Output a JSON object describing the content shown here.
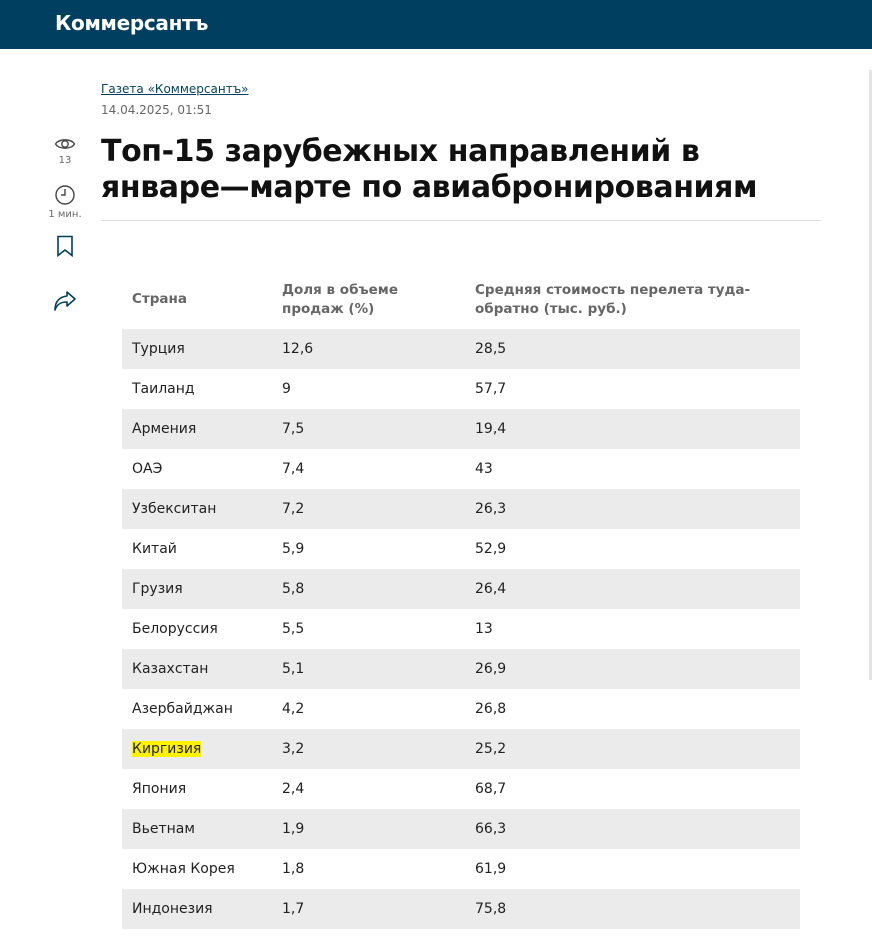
{
  "site": {
    "logo": "Коммерсантъ"
  },
  "article": {
    "source": "Газета «Коммерсантъ»",
    "date": "14.04.2025, 01:51",
    "title": "Топ-15 зарубежных направлений в январе—марте по авиабронированиям"
  },
  "rail": {
    "views": "13",
    "read_time": "1 мин."
  },
  "table": {
    "headers": [
      "Страна",
      "Доля в объеме продаж (%)",
      "Средняя стоимость перелета туда-обратно (тыс. руб.)"
    ],
    "rows": [
      [
        "Турция",
        "12,6",
        "28,5"
      ],
      [
        "Таиланд",
        "9",
        "57,7"
      ],
      [
        "Армения",
        "7,5",
        "19,4"
      ],
      [
        "ОАЭ",
        "7,4",
        "43"
      ],
      [
        "Узбекситан",
        "7,2",
        "26,3"
      ],
      [
        "Китай",
        "5,9",
        "52,9"
      ],
      [
        "Грузия",
        "5,8",
        "26,4"
      ],
      [
        "Белоруссия",
        "5,5",
        "13"
      ],
      [
        "Казахстан",
        "5,1",
        "26,9"
      ],
      [
        "Азербайджан",
        "4,2",
        "26,8"
      ],
      [
        "Киргизия",
        "3,2",
        "25,2"
      ],
      [
        "Япония",
        "2,4",
        "68,7"
      ],
      [
        "Вьетнам",
        "1,9",
        "66,3"
      ],
      [
        "Южная Корея",
        "1,8",
        "61,9"
      ],
      [
        "Индонезия",
        "1,7",
        "75,8"
      ]
    ]
  },
  "highlight": {
    "row_index": 10,
    "color": "#fff200"
  },
  "colors": {
    "header_bg": "#003f5f",
    "stripe": "#ebebeb"
  },
  "icons": [
    "eye-icon",
    "clock-icon",
    "bookmark-icon",
    "share-icon"
  ]
}
